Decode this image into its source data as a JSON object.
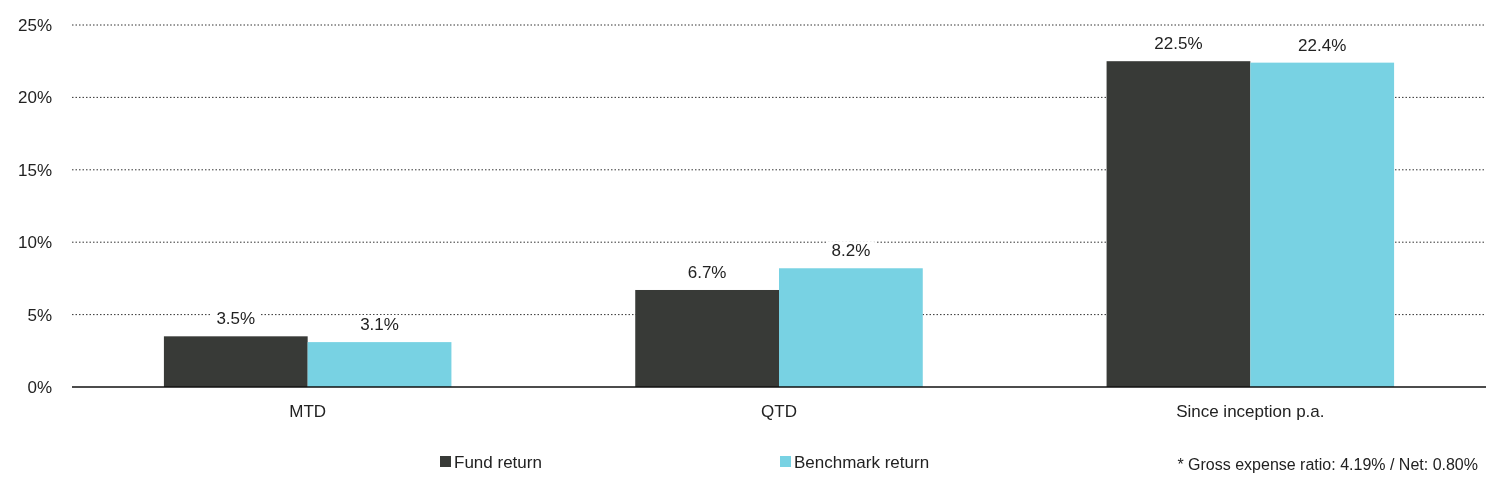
{
  "chart_data": {
    "type": "bar",
    "categories": [
      "MTD",
      "QTD",
      "Since inception p.a."
    ],
    "series": [
      {
        "name": "Fund return",
        "color": "#383a37",
        "values": [
          3.5,
          6.7,
          22.5
        ],
        "value_labels": [
          "3.5%",
          "6.7%",
          "22.5%"
        ]
      },
      {
        "name": "Benchmark return",
        "color": "#78d2e3",
        "values": [
          3.1,
          8.2,
          22.4
        ],
        "value_labels": [
          "3.1%",
          "8.2%",
          "22.4%"
        ]
      }
    ],
    "ylim": [
      0,
      25
    ],
    "yticks": [
      {
        "value": 0,
        "label": "0%"
      },
      {
        "value": 5,
        "label": "5%"
      },
      {
        "value": 10,
        "label": "10%"
      },
      {
        "value": 15,
        "label": "15%"
      },
      {
        "value": 20,
        "label": "20%"
      },
      {
        "value": 25,
        "label": "25%"
      }
    ],
    "grid": "y",
    "legend": "bottom",
    "annotations": [
      "* Gross expense ratio: 4.19% / Net: 0.80%"
    ]
  }
}
